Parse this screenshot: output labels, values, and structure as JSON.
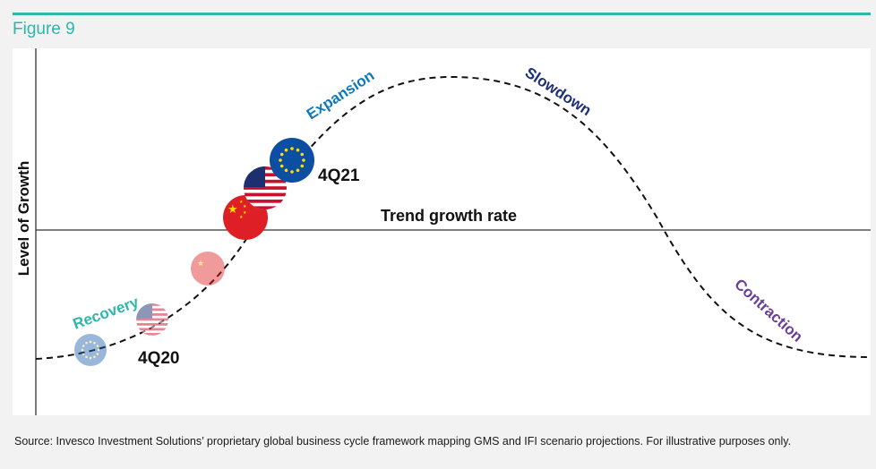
{
  "figure_label": "Figure 9",
  "accent_color": "#2cb7aa",
  "y_axis_label": "Level of Growth",
  "trend_label": "Trend growth rate",
  "phases": {
    "recovery": "Recovery",
    "expansion": "Expansion",
    "slowdown": "Slowdown",
    "contraction": "Contraction"
  },
  "phase_colors": {
    "recovery": "#2cb7aa",
    "expansion": "#0e7ab8",
    "slowdown": "#1e2f7a",
    "contraction": "#6b3e9a"
  },
  "period_labels": {
    "start": "4Q20",
    "end": "4Q21"
  },
  "markers": [
    {
      "name": "eu-flag-4q20",
      "flag": "eu-flag",
      "faded": true
    },
    {
      "name": "us-flag-4q20",
      "flag": "us-flag",
      "faded": true
    },
    {
      "name": "china-flag-4q20",
      "flag": "china-flag",
      "faded": true
    },
    {
      "name": "china-flag-4q21",
      "flag": "china-flag",
      "faded": false
    },
    {
      "name": "us-flag-4q21",
      "flag": "us-flag",
      "faded": false
    },
    {
      "name": "eu-flag-4q21",
      "flag": "eu-flag",
      "faded": false
    }
  ],
  "source": "Source: Invesco Investment Solutions’ proprietary global business cycle framework mapping GMS and IFI scenario projections. For illustrative purposes only."
}
